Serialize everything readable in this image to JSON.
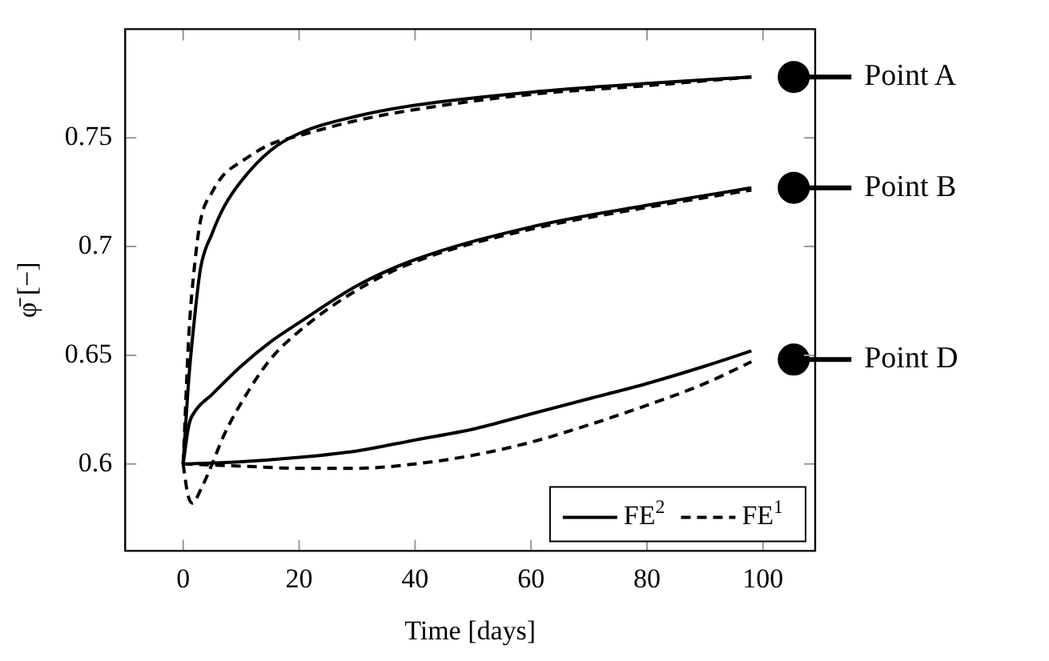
{
  "chart_data": {
    "type": "line",
    "xlabel": "Time [days]",
    "ylabel": "φ̄ [−]",
    "xlim": [
      -10,
      109
    ],
    "xticks": [
      0,
      20,
      40,
      60,
      80,
      100
    ],
    "ylim": [
      0.56,
      0.8
    ],
    "yticks": [
      0.6,
      0.65,
      0.7,
      0.75
    ],
    "legend": "bottom right",
    "marker": "none",
    "series": [
      {
        "name": "FE$^{2}$",
        "color": "#000000",
        "line_style": "solid",
        "x": [
          0,
          1,
          2,
          3,
          5,
          7,
          10,
          15,
          20,
          30,
          40,
          60,
          80,
          98
        ],
        "values": [
          0.6,
          0.64,
          0.668,
          0.69,
          0.706,
          0.718,
          0.73,
          0.744,
          0.752,
          0.76,
          0.765,
          0.771,
          0.775,
          0.778
        ]
      },
      {
        "color": "#000000",
        "line_style": "solid",
        "x": [
          0,
          1,
          2,
          5,
          10,
          15,
          20,
          30,
          40,
          60,
          80,
          98
        ],
        "values": [
          0.6,
          0.618,
          0.624,
          0.632,
          0.645,
          0.656,
          0.665,
          0.682,
          0.694,
          0.709,
          0.719,
          0.727
        ]
      },
      {
        "color": "#000000",
        "line_style": "solid",
        "x": [
          0,
          10,
          20,
          30,
          40,
          50,
          60,
          70,
          80,
          90,
          98
        ],
        "values": [
          0.6,
          0.601,
          0.603,
          0.606,
          0.611,
          0.616,
          0.623,
          0.63,
          0.637,
          0.645,
          0.652
        ]
      },
      {
        "name": "FE$^{1}$",
        "color": "#000000",
        "line_style": "dashed",
        "x": [
          0,
          1,
          2,
          3,
          5,
          7,
          10,
          15,
          20,
          30,
          40,
          60,
          80,
          98
        ],
        "values": [
          0.6,
          0.66,
          0.692,
          0.712,
          0.725,
          0.733,
          0.739,
          0.747,
          0.751,
          0.758,
          0.763,
          0.77,
          0.774,
          0.778
        ]
      },
      {
        "color": "#000000",
        "line_style": "dashed",
        "x": [
          0,
          0.8,
          1.6,
          3,
          5,
          7,
          10,
          15,
          20,
          30,
          40,
          60,
          80,
          98
        ],
        "values": [
          0.6,
          0.586,
          0.582,
          0.588,
          0.6,
          0.613,
          0.628,
          0.648,
          0.661,
          0.68,
          0.693,
          0.708,
          0.718,
          0.726
        ]
      },
      {
        "color": "#000000",
        "line_style": "dashed",
        "x": [
          0,
          10,
          20,
          30,
          40,
          50,
          60,
          70,
          80,
          90,
          98
        ],
        "values": [
          0.6,
          0.599,
          0.598,
          0.598,
          0.6,
          0.604,
          0.61,
          0.618,
          0.627,
          0.637,
          0.647
        ]
      },
      {
        "type": "scatter",
        "color": "#000000",
        "marker": "circle",
        "x": [
          105.3,
          105.3,
          105.3
        ],
        "values": [
          0.778,
          0.727,
          0.648
        ]
      }
    ],
    "annotations": [
      "Point A",
      "Point B",
      "Point D"
    ]
  }
}
